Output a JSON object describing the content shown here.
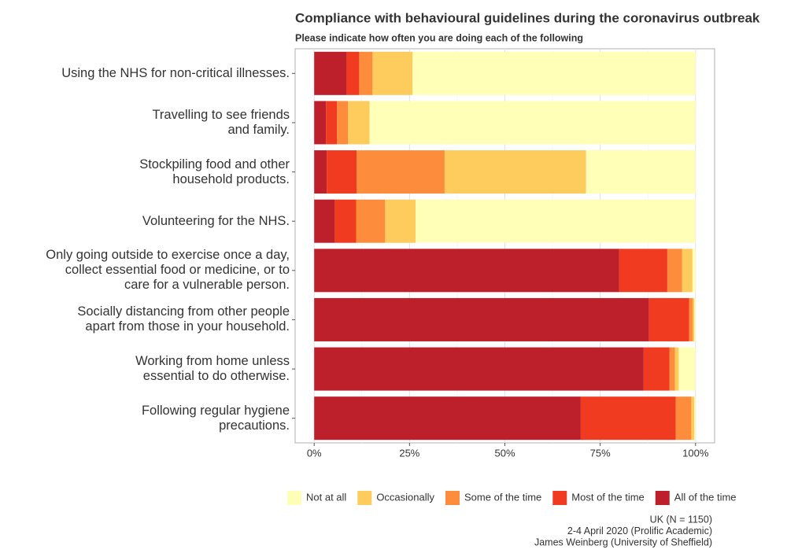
{
  "chart_data": {
    "type": "stacked-bar-horizontal",
    "title": "Compliance with behavioural guidelines during the coronavirus outbreak",
    "subtitle": "Please indicate how often you are doing each of the following",
    "categories": [
      "Using the NHS for non-critical illnesses.",
      "Travelling to see friends\nand family.",
      "Stockpiling food and other\nhousehold products.",
      "Volunteering for the NHS.",
      "Only going outside to exercise once a day,\ncollect essential food or medicine, or to\ncare for a vulnerable person.",
      "Socially distancing from other people\napart from those in your household.",
      "Working from home unless\nessential to do otherwise.",
      "Following regular hygiene\nprecautions."
    ],
    "series": [
      {
        "name": "Not at all",
        "color": "#ffffb8",
        "values": [
          74.2,
          85.5,
          28.7,
          73.4,
          0.8,
          0.3,
          4.4,
          0.3
        ]
      },
      {
        "name": "Occasionally",
        "color": "#fecc5c",
        "values": [
          10.5,
          5.6,
          37.1,
          8.0,
          2.7,
          0.4,
          1.0,
          0.8
        ]
      },
      {
        "name": "Some of the time",
        "color": "#fd8d3c",
        "values": [
          3.5,
          2.9,
          23.1,
          7.6,
          3.9,
          1.0,
          1.4,
          4.1
        ]
      },
      {
        "name": "Most of the time",
        "color": "#f03b20",
        "values": [
          3.3,
          2.9,
          7.8,
          5.6,
          12.6,
          10.5,
          6.8,
          24.9
        ]
      },
      {
        "name": "All of the time",
        "color": "#bd1f2b",
        "values": [
          8.5,
          3.1,
          3.3,
          5.4,
          80.0,
          87.8,
          86.4,
          69.9
        ]
      }
    ],
    "xlim": [
      -5,
      105
    ],
    "xticks": [
      {
        "value": 0,
        "label": "0%"
      },
      {
        "value": 25,
        "label": "25%"
      },
      {
        "value": 50,
        "label": "50%"
      },
      {
        "value": 75,
        "label": "75%"
      },
      {
        "value": 100,
        "label": "100%"
      }
    ],
    "grid": true,
    "legend": "bottom",
    "caption": [
      "UK (N = 1150)",
      "2-4 April 2020 (Prolific Academic)",
      "James Weinberg (University of Sheffield)"
    ]
  }
}
